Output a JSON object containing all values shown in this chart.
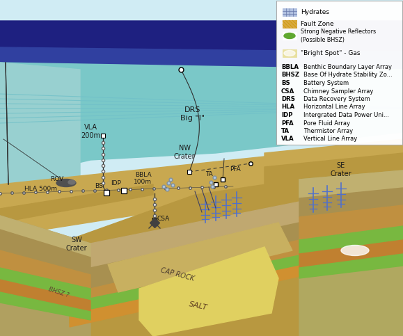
{
  "abbrevs": [
    [
      "BBLA",
      "Benthic Boundary Layer Array"
    ],
    [
      "BHSZ",
      "Base Of Hydrate Stability Zo..."
    ],
    [
      "BS",
      "Battery System"
    ],
    [
      "CSA",
      "Chimney Sampler Array"
    ],
    [
      "DRS",
      "Data Recovery System"
    ],
    [
      "HLA",
      "Horizontal Line Array"
    ],
    [
      "IDP",
      "Intergrated Data Power Uni..."
    ],
    [
      "PFA",
      "Pore Fluid Array"
    ],
    [
      "TA",
      "Thermistor Array"
    ],
    [
      "VLA",
      "Vertical Line Array"
    ]
  ],
  "sky_color": "#d0ecf4",
  "navy_color": "#1e2080",
  "mid_blue_color": "#3040a0",
  "ocean_color": "#7ac8c8",
  "ocean_light": "#90d0d0",
  "seafloor_top": "#c8a850",
  "seafloor_mid": "#b89840",
  "seafloor_dark": "#a08030",
  "left_face_color": "#a89040",
  "canyon_face_color": "#b0a060",
  "layer_beige": "#c8b878",
  "layer_tan": "#b8a060",
  "layer_brown": "#a08848",
  "green_layer": "#78b840",
  "yellow_salt": "#e0d060",
  "orange_cap": "#c89040",
  "fault_orange": "#d09838",
  "cable_color": "#303030",
  "instrument_color": "#e8e8e8",
  "blue_tree_color": "#5070cc",
  "bubble_color": "#b0c8e0",
  "legend_bg": "#ffffff",
  "legend_border": "#aaaaaa",
  "hydrate_color": "#b0c0e0",
  "fault_zone_color": "#d8a840",
  "snr_green": "#60a830",
  "brightspot_color": "#e8e0a0"
}
